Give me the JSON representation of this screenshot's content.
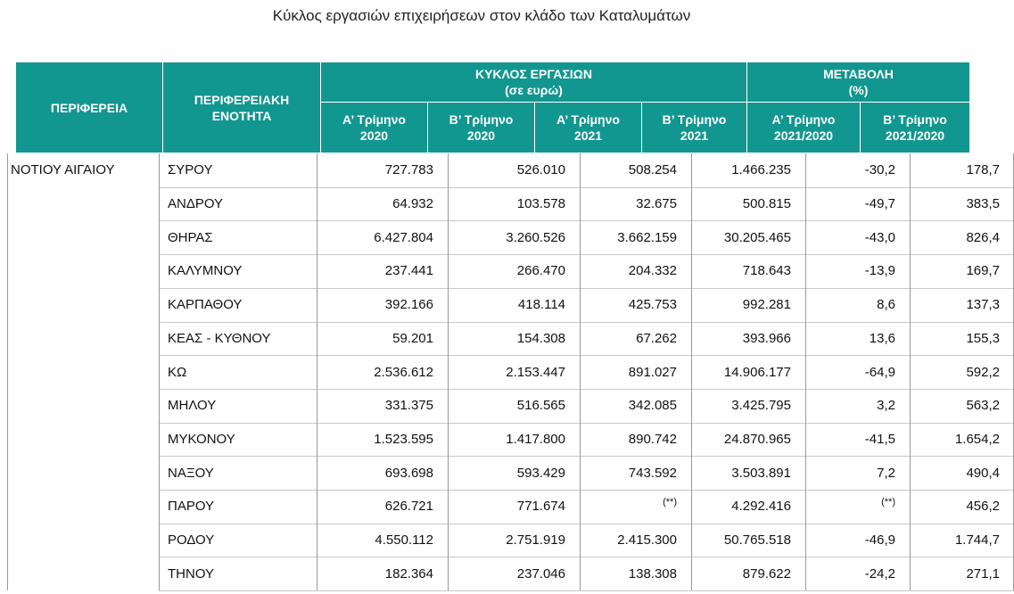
{
  "title": "Κύκλος εργασιών επιχειρήσεων στον κλάδο των Καταλυμάτων",
  "header": {
    "region": "ΠΕΡΙΦΕΡΕΙΑ",
    "unit": [
      "ΠΕΡΙΦΕΡΕΙΑΚΗ",
      "ΕΝΟΤΗΤΑ"
    ],
    "groups": [
      [
        "ΚΥΚΛΟΣ ΕΡΓΑΣΙΩΝ",
        "(σε ευρώ)"
      ],
      [
        "ΜΕΤΑΒΟΛΗ",
        "(%)"
      ]
    ],
    "columns": [
      [
        "Α’ Τρίμηνο",
        "2020"
      ],
      [
        "Β’ Τρίμηνο",
        "2020"
      ],
      [
        "Α’ Τρίμηνο",
        "2021"
      ],
      [
        "Β’ Τρίμηνο",
        "2021"
      ],
      [
        "Α’ Τρίμηνο",
        "2021/2020"
      ],
      [
        "Β’ Τρίμηνο",
        "2021/2020"
      ]
    ]
  },
  "table": {
    "region": "ΝΟΤΙΟΥ ΑΙΓΑΙΟΥ",
    "rows": [
      [
        "ΣΥΡΟΥ",
        "727.783",
        "526.010",
        "508.254",
        "1.466.235",
        "-30,2",
        "178,7"
      ],
      [
        "ΑΝΔΡΟΥ",
        "64.932",
        "103.578",
        "32.675",
        "500.815",
        "-49,7",
        "383,5"
      ],
      [
        "ΘΗΡΑΣ",
        "6.427.804",
        "3.260.526",
        "3.662.159",
        "30.205.465",
        "-43,0",
        "826,4"
      ],
      [
        "ΚΑΛΥΜΝΟΥ",
        "237.441",
        "266.470",
        "204.332",
        "718.643",
        "-13,9",
        "169,7"
      ],
      [
        "ΚΑΡΠΑΘΟΥ",
        "392.166",
        "418.114",
        "425.753",
        "992.281",
        "8,6",
        "137,3"
      ],
      [
        "ΚΕΑΣ - ΚΥΘΝΟΥ",
        "59.201",
        "154.308",
        "67.262",
        "393.966",
        "13,6",
        "155,3"
      ],
      [
        "ΚΩ",
        "2.536.612",
        "2.153.447",
        "891.027",
        "14.906.177",
        "-64,9",
        "592,2"
      ],
      [
        "ΜΗΛΟΥ",
        "331.375",
        "516.565",
        "342.085",
        "3.425.795",
        "3,2",
        "563,2"
      ],
      [
        "ΜΥΚΟΝΟΥ",
        "1.523.595",
        "1.417.800",
        "890.742",
        "24.870.965",
        "-41,5",
        "1.654,2"
      ],
      [
        "ΝΑΞΟΥ",
        "693.698",
        "593.429",
        "743.592",
        "3.503.891",
        "7,2",
        "490,4"
      ],
      [
        "ΠΑΡΟΥ",
        "626.721",
        "771.674",
        "(**)",
        "4.292.416",
        "(**)",
        "456,2"
      ],
      [
        "ΡΟΔΟΥ",
        "4.550.112",
        "2.751.919",
        "2.415.300",
        "50.765.518",
        "-46,9",
        "1.744,7"
      ],
      [
        "ΤΗΝΟΥ",
        "182.364",
        "237.046",
        "138.308",
        "879.622",
        "-24,2",
        "271,1"
      ]
    ]
  }
}
